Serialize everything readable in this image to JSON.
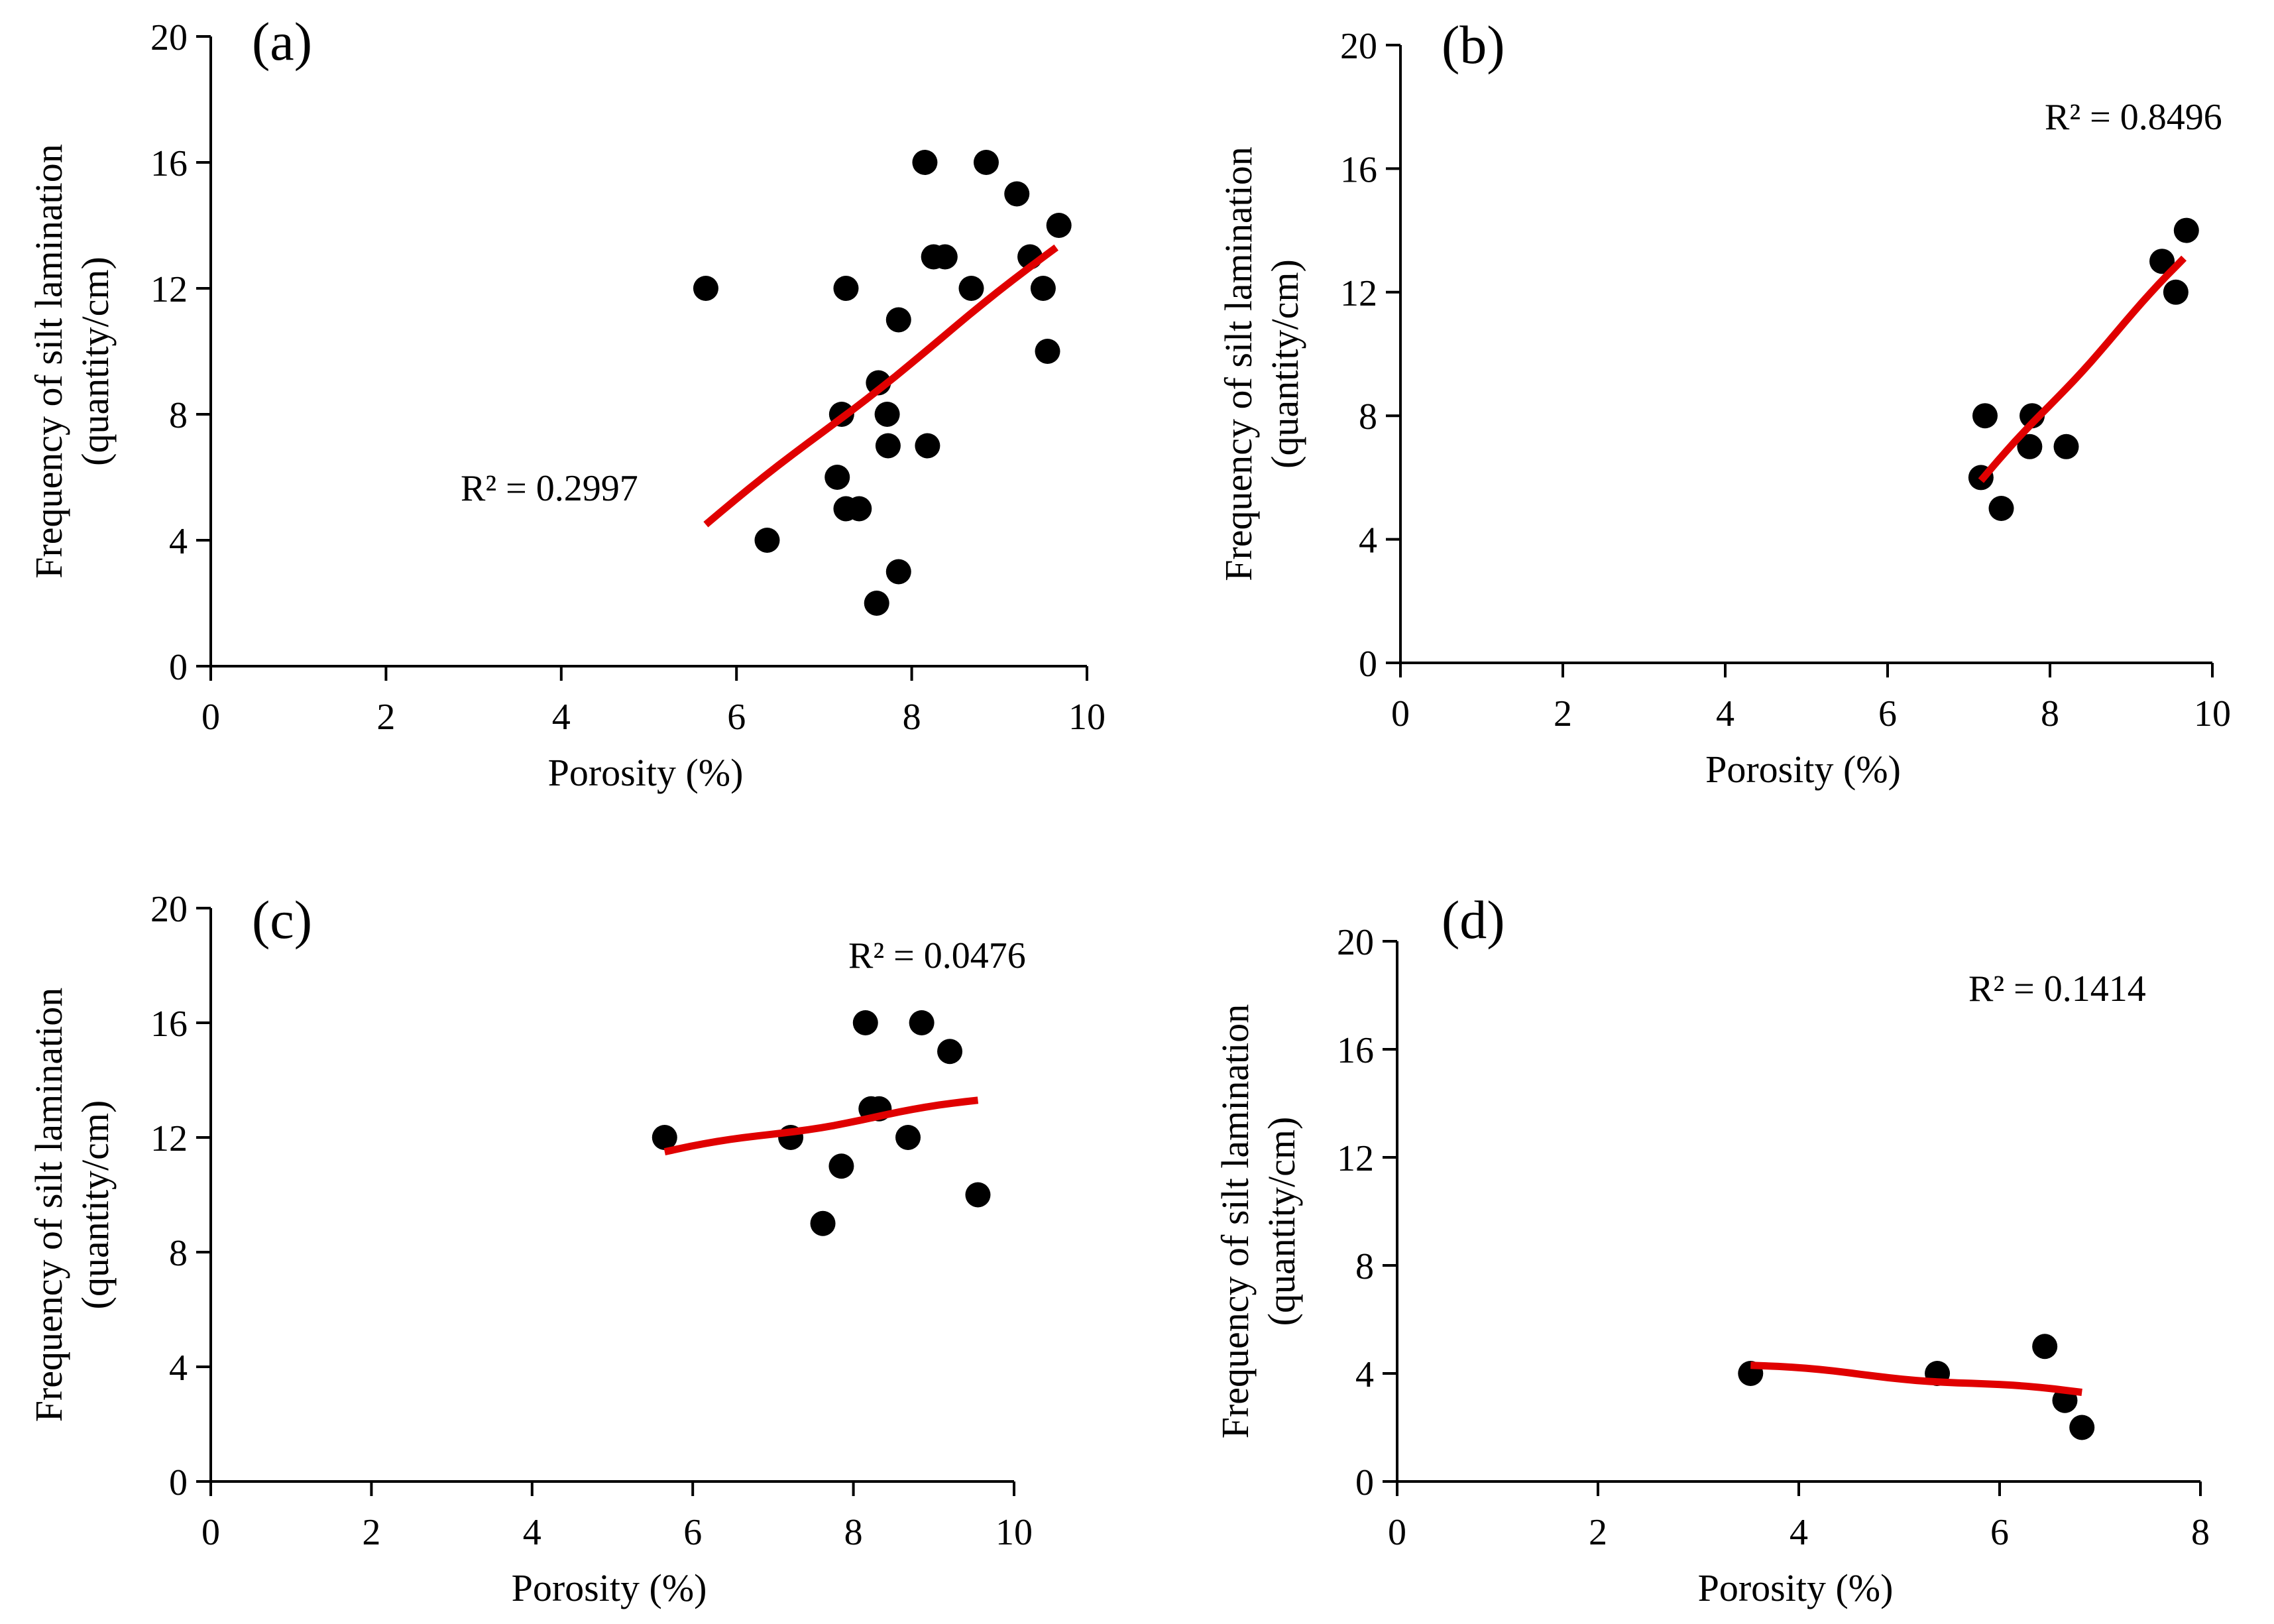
{
  "figure": {
    "background": "#ffffff",
    "point_color": "#000000",
    "trend_color": "#e00000"
  },
  "chart_data": [
    {
      "type": "scatter",
      "panel": "(a)",
      "xlabel": "Porosity (%)",
      "ylabel_line1": "Frequency of silt lamination",
      "ylabel_line2": "(quantity/cm)",
      "xlim": [
        0,
        10
      ],
      "ylim": [
        0,
        20
      ],
      "xticks": [
        0,
        2,
        4,
        6,
        8,
        10
      ],
      "yticks": [
        0,
        4,
        8,
        12,
        16,
        20
      ],
      "r2": "R² = 0.2997",
      "points": [
        [
          5.65,
          12
        ],
        [
          6.35,
          4
        ],
        [
          7.15,
          6
        ],
        [
          7.2,
          8
        ],
        [
          7.25,
          5
        ],
        [
          7.25,
          12
        ],
        [
          7.4,
          5
        ],
        [
          7.6,
          2
        ],
        [
          7.62,
          9
        ],
        [
          7.72,
          8
        ],
        [
          7.73,
          7
        ],
        [
          7.85,
          3
        ],
        [
          7.85,
          11
        ],
        [
          8.15,
          16
        ],
        [
          8.18,
          7
        ],
        [
          8.25,
          13
        ],
        [
          8.38,
          13
        ],
        [
          8.68,
          12
        ],
        [
          8.85,
          16
        ],
        [
          9.2,
          15
        ],
        [
          9.35,
          13
        ],
        [
          9.5,
          12
        ],
        [
          9.55,
          10
        ],
        [
          9.68,
          14
        ]
      ],
      "trend": [
        [
          5.65,
          4.5
        ],
        [
          9.65,
          13.3
        ]
      ]
    },
    {
      "type": "scatter",
      "panel": "(b)",
      "xlabel": "Porosity (%)",
      "ylabel_line1": "Frequency of silt lamination",
      "ylabel_line2": "(quantity/cm)",
      "xlim": [
        0,
        10
      ],
      "ylim": [
        0,
        20
      ],
      "xticks": [
        0,
        2,
        4,
        6,
        8,
        10
      ],
      "yticks": [
        0,
        4,
        8,
        12,
        16,
        20
      ],
      "r2": "R² = 0.8496",
      "points": [
        [
          7.15,
          6
        ],
        [
          7.2,
          8
        ],
        [
          7.4,
          5
        ],
        [
          7.75,
          7
        ],
        [
          7.78,
          8
        ],
        [
          8.2,
          7
        ],
        [
          9.38,
          13
        ],
        [
          9.55,
          12
        ],
        [
          9.68,
          14
        ]
      ],
      "trend": [
        [
          7.15,
          5.9
        ],
        [
          9.65,
          13.1
        ]
      ]
    },
    {
      "type": "scatter",
      "panel": "(c)",
      "xlabel": "Porosity (%)",
      "ylabel_line1": "Frequency of silt lamination",
      "ylabel_line2": "(quantity/cm)",
      "xlim": [
        0,
        10
      ],
      "ylim": [
        0,
        20
      ],
      "xticks": [
        0,
        2,
        4,
        6,
        8,
        10
      ],
      "yticks": [
        0,
        4,
        8,
        12,
        16,
        20
      ],
      "r2": "R² = 0.0476",
      "points": [
        [
          5.65,
          12
        ],
        [
          7.22,
          12
        ],
        [
          7.62,
          9
        ],
        [
          7.85,
          11
        ],
        [
          8.15,
          16
        ],
        [
          8.22,
          13
        ],
        [
          8.32,
          13
        ],
        [
          8.68,
          12
        ],
        [
          8.85,
          16
        ],
        [
          9.2,
          15
        ],
        [
          9.55,
          10
        ]
      ],
      "trend": [
        [
          5.65,
          11.5
        ],
        [
          9.55,
          13.3
        ]
      ]
    },
    {
      "type": "scatter",
      "panel": "(d)",
      "xlabel": "Porosity (%)",
      "ylabel_line1": "Frequency of silt lamination",
      "ylabel_line2": "(quantity/cm)",
      "xlim": [
        0,
        8
      ],
      "ylim": [
        0,
        20
      ],
      "xticks": [
        0,
        2,
        4,
        6,
        8
      ],
      "yticks": [
        0,
        4,
        8,
        12,
        16,
        20
      ],
      "r2": "R² = 0.1414",
      "points": [
        [
          3.52,
          4
        ],
        [
          5.38,
          4
        ],
        [
          6.45,
          5
        ],
        [
          6.65,
          3
        ],
        [
          6.82,
          2
        ]
      ],
      "trend": [
        [
          3.52,
          4.3
        ],
        [
          6.82,
          3.3
        ]
      ]
    }
  ]
}
